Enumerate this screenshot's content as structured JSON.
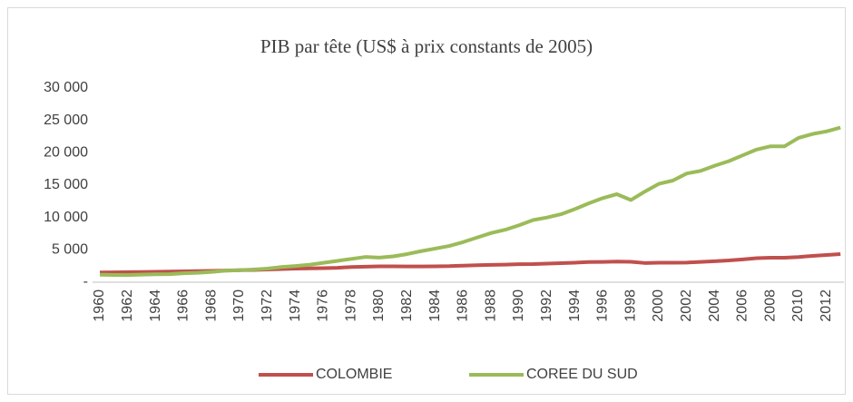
{
  "chart_data": {
    "type": "line",
    "title": "PIB par tête (US$ à prix constants de 2005)",
    "categories": [
      "1960",
      null,
      "1962",
      null,
      "1964",
      null,
      "1966",
      null,
      "1968",
      null,
      "1970",
      null,
      "1972",
      null,
      "1974",
      null,
      "1976",
      null,
      "1978",
      null,
      "1980",
      null,
      "1982",
      null,
      "1984",
      null,
      "1986",
      null,
      "1988",
      null,
      "1990",
      null,
      "1992",
      null,
      "1994",
      null,
      "1996",
      null,
      "1998",
      null,
      "2000",
      null,
      "2002",
      null,
      "2004",
      null,
      "2006",
      null,
      "2008",
      null,
      "2010",
      null,
      "2012",
      null
    ],
    "series": [
      {
        "name": "COLOMBIE",
        "color": "#c0504d",
        "values": [
          1500,
          1530,
          1560,
          1580,
          1620,
          1640,
          1680,
          1710,
          1750,
          1800,
          1850,
          1900,
          1970,
          2040,
          2110,
          2130,
          2180,
          2230,
          2350,
          2400,
          2450,
          2460,
          2440,
          2430,
          2460,
          2480,
          2560,
          2630,
          2680,
          2710,
          2780,
          2800,
          2870,
          2940,
          3020,
          3120,
          3140,
          3190,
          3160,
          2970,
          3010,
          3020,
          3040,
          3130,
          3240,
          3360,
          3530,
          3710,
          3780,
          3790,
          3890,
          4070,
          4200,
          4350
        ]
      },
      {
        "name": "COREE DU SUD",
        "color": "#9bbb59",
        "values": [
          1150,
          1130,
          1100,
          1170,
          1220,
          1250,
          1380,
          1450,
          1600,
          1780,
          1850,
          1970,
          2100,
          2350,
          2500,
          2700,
          3000,
          3300,
          3600,
          3900,
          3800,
          4000,
          4350,
          4800,
          5200,
          5600,
          6200,
          6900,
          7600,
          8100,
          8800,
          9600,
          10000,
          10500,
          11300,
          12200,
          13000,
          13600,
          12700,
          14000,
          15200,
          15700,
          16800,
          17200,
          18000,
          18700,
          19600,
          20500,
          21000,
          21000,
          22300,
          22900,
          23300,
          23900
        ]
      }
    ],
    "ylim": [
      0,
      30000
    ],
    "yticks": [
      {
        "value": 0,
        "label": "-"
      },
      {
        "value": 5000,
        "label": "5 000"
      },
      {
        "value": 10000,
        "label": "10 000"
      },
      {
        "value": 15000,
        "label": "15 000"
      },
      {
        "value": 20000,
        "label": "20 000"
      },
      {
        "value": 25000,
        "label": "25 000"
      },
      {
        "value": 30000,
        "label": "30 000"
      }
    ],
    "grid": false,
    "legend": "bottom"
  }
}
